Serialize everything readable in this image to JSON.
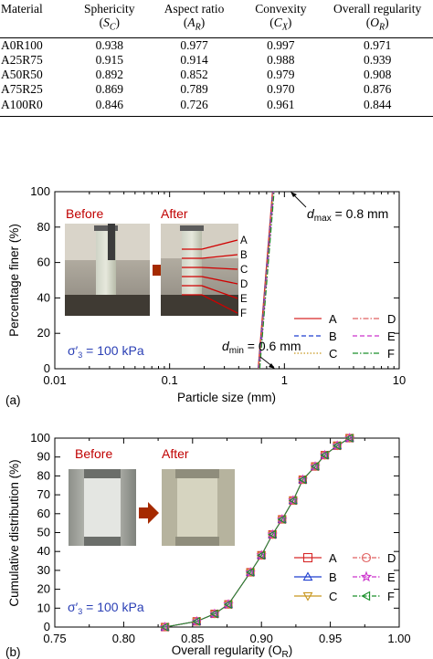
{
  "table": {
    "headers": [
      {
        "line1": "Material",
        "line2": "",
        "sym": "",
        "sub": ""
      },
      {
        "line1": "Sphericity",
        "line2": "(",
        "sym": "S",
        "sub": "C"
      },
      {
        "line1": "Aspect ratio",
        "line2": "(",
        "sym": "A",
        "sub": "R"
      },
      {
        "line1": "Convexity",
        "line2": "(",
        "sym": "C",
        "sub": "X"
      },
      {
        "line1": "Overall regularity",
        "line2": "(",
        "sym": "O",
        "sub": "R"
      }
    ],
    "rows": [
      [
        "A0R100",
        "0.938",
        "0.977",
        "0.997",
        "0.971"
      ],
      [
        "A25R75",
        "0.915",
        "0.914",
        "0.988",
        "0.939"
      ],
      [
        "A50R50",
        "0.892",
        "0.852",
        "0.979",
        "0.908"
      ],
      [
        "A75R25",
        "0.869",
        "0.789",
        "0.970",
        "0.876"
      ],
      [
        "A100R0",
        "0.846",
        "0.726",
        "0.961",
        "0.844"
      ]
    ]
  },
  "figure_a": {
    "panel_label": "(a)",
    "before_label": "Before",
    "after_label": "After",
    "sigma_text": "σ′3 = 100 kPa",
    "dmax_text": "dmax = 0.8 mm",
    "dmin_text": "dmin = 0.6 mm",
    "height_markers": [
      "A",
      "B",
      "C",
      "D",
      "E",
      "F"
    ],
    "colors": {
      "accent_red": "#c00000",
      "arrow": "#a52a00",
      "sigma": "#2a3fb5"
    }
  },
  "figure_b": {
    "panel_label": "(b)",
    "before_label": "Before",
    "after_label": "After",
    "sigma_text": "σ′3 = 100 kPa"
  },
  "chart_data": [
    {
      "type": "line",
      "xlabel": "Particle size  (mm)",
      "ylabel": "Percentage finer  (%)",
      "x_scale": "log",
      "xlim": [
        0.01,
        10
      ],
      "ylim": [
        0,
        100
      ],
      "x_ticks": [
        "0.01",
        "0.1",
        "1",
        "10"
      ],
      "y_ticks": [
        "0",
        "20",
        "40",
        "60",
        "80",
        "100"
      ],
      "legend_position": "bottom-right",
      "series": [
        {
          "name": "A",
          "color": "#d62728",
          "dash": "solid",
          "x": [
            0.6,
            0.8
          ],
          "y": [
            0,
            100
          ]
        },
        {
          "name": "B",
          "color": "#1f3fcf",
          "dash": "dashed",
          "x": [
            0.6,
            0.8
          ],
          "y": [
            0,
            100
          ]
        },
        {
          "name": "C",
          "color": "#c8961e",
          "dash": "dotted",
          "x": [
            0.6,
            0.8
          ],
          "y": [
            0,
            100
          ]
        },
        {
          "name": "D",
          "color": "#e06060",
          "dash": "dashdot",
          "x": [
            0.6,
            0.8
          ],
          "y": [
            0,
            100
          ]
        },
        {
          "name": "E",
          "color": "#cc33cc",
          "dash": "dashed",
          "x": [
            0.6,
            0.8
          ],
          "y": [
            0,
            100
          ]
        },
        {
          "name": "F",
          "color": "#1a8f2a",
          "dash": "dashdot",
          "x": [
            0.6,
            0.8
          ],
          "y": [
            0,
            100
          ]
        }
      ]
    },
    {
      "type": "line",
      "xlabel": "Overall regularity  (O",
      "xlabel_sub": "R",
      "ylabel": "Cumulative distribution  (%)",
      "xlim": [
        0.75,
        1.0
      ],
      "ylim": [
        0,
        100
      ],
      "x_ticks": [
        "0.75",
        "0.80",
        "0.85",
        "0.90",
        "0.95",
        "1.00"
      ],
      "y_ticks": [
        "0",
        "10",
        "20",
        "30",
        "40",
        "50",
        "60",
        "70",
        "80",
        "90",
        "100"
      ],
      "legend_position": "bottom-right",
      "x": [
        0.83,
        0.853,
        0.866,
        0.876,
        0.892,
        0.9,
        0.908,
        0.915,
        0.923,
        0.93,
        0.939,
        0.946,
        0.955,
        0.964
      ],
      "y": [
        0,
        3,
        7,
        12,
        29,
        38,
        49,
        57,
        67,
        78,
        85,
        91,
        96,
        100
      ],
      "series": [
        {
          "name": "A",
          "color": "#d62728",
          "marker": "square"
        },
        {
          "name": "B",
          "color": "#1f3fcf",
          "marker": "triangle-up"
        },
        {
          "name": "C",
          "color": "#c8961e",
          "marker": "triangle-down"
        },
        {
          "name": "D",
          "color": "#e06060",
          "marker": "circle"
        },
        {
          "name": "E",
          "color": "#cc33cc",
          "marker": "star"
        },
        {
          "name": "F",
          "color": "#1a8f2a",
          "marker": "triangle-left"
        }
      ]
    }
  ]
}
